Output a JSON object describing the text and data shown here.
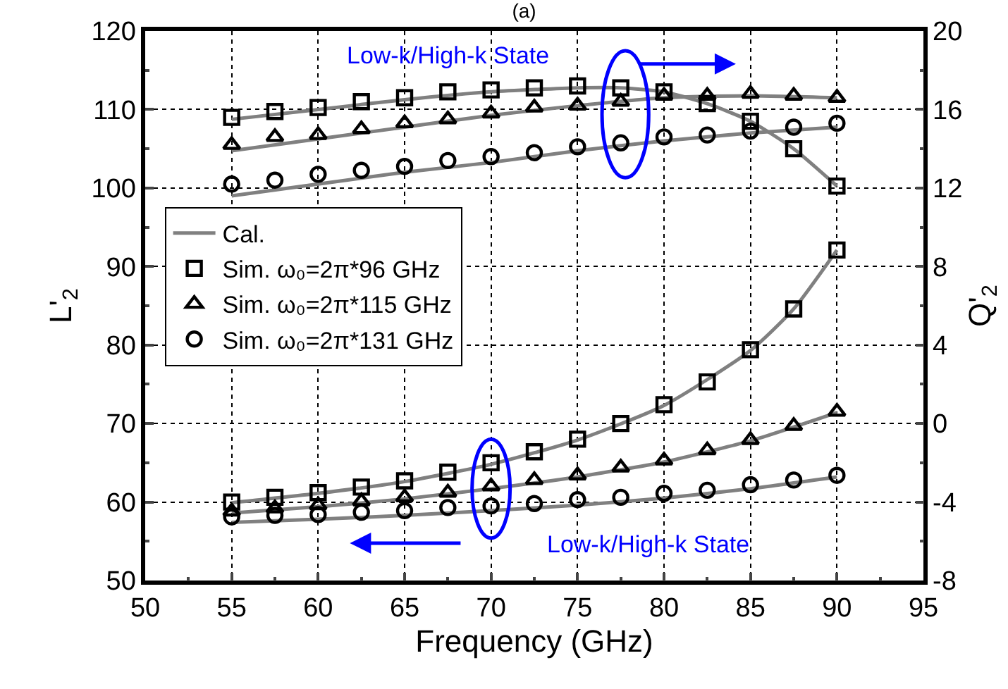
{
  "chart_data": {
    "type": "scatter",
    "title": "(a)",
    "xlabel": "Frequency (GHz)",
    "ylabel": "L'$_{2}$",
    "y2label": "Q'$_{2}$",
    "xlim": [
      50,
      95
    ],
    "xticks": [
      50,
      55,
      60,
      65,
      70,
      75,
      80,
      85,
      90,
      95
    ],
    "ylim": [
      50,
      120
    ],
    "yticks": [
      50,
      60,
      70,
      80,
      90,
      100,
      110,
      120
    ],
    "y2lim": [
      -8,
      20
    ],
    "y2ticks": [
      -8,
      -4,
      0,
      4,
      8,
      12,
      16,
      20
    ],
    "grid": true,
    "legend": "left",
    "annotations": [
      "Low-k/High-k State",
      {
        "text": "Low-k/High-k State",
        "x": 70,
        "y": 61.7
      }
    ],
    "series": [
      {
        "name": "Cal.",
        "type": "line",
        "color": "#808080",
        "marker": "none",
        "line_style": "solid",
        "x": [
          55,
          60,
          65,
          70,
          75,
          80,
          85,
          87.5,
          90
        ],
        "values": [
          59.9,
          61.1,
          62.6,
          64.8,
          67.9,
          72.3,
          79.3,
          84.6,
          92.1
        ]
      },
      {
        "type": "line",
        "color": "#808080",
        "marker": "none",
        "line_style": "solid",
        "x": [
          55,
          60,
          65,
          70,
          75,
          80,
          85,
          90
        ],
        "values": [
          58.6,
          59.4,
          60.4,
          61.7,
          63.2,
          65.1,
          67.8,
          71.4
        ]
      },
      {
        "type": "line",
        "color": "#808080",
        "marker": "none",
        "line_style": "solid",
        "x": [
          55,
          60,
          65,
          70,
          75,
          80,
          85,
          90
        ],
        "values": [
          57.4,
          57.8,
          58.3,
          58.9,
          59.6,
          60.5,
          61.7,
          63.2
        ]
      },
      {
        "type": "line",
        "axis": "y2",
        "color": "#808080",
        "marker": "none",
        "line_style": "solid",
        "x": [
          55,
          60,
          65,
          70,
          75,
          77.5,
          80,
          82.5,
          85,
          87.5,
          90
        ],
        "values": [
          15.5,
          16.0,
          16.5,
          16.9,
          17.1,
          17.1,
          16.9,
          16.3,
          15.4,
          14.0,
          12.1
        ]
      },
      {
        "type": "line",
        "axis": "y2",
        "color": "#808080",
        "marker": "none",
        "line_style": "solid",
        "x": [
          55,
          60,
          65,
          70,
          75,
          80,
          85,
          90
        ],
        "values": [
          13.9,
          14.5,
          15.1,
          15.7,
          16.2,
          16.6,
          16.7,
          16.6
        ]
      },
      {
        "type": "line",
        "axis": "y2",
        "color": "#808080",
        "marker": "none",
        "line_style": "solid",
        "x": [
          55,
          60,
          65,
          70,
          75,
          80,
          85,
          90
        ],
        "values": [
          11.6,
          12.2,
          12.8,
          13.3,
          13.9,
          14.4,
          14.8,
          15.1
        ]
      },
      {
        "name": "Sim. ω₀=2π*96 GHz",
        "color": "#000000",
        "marker": "square",
        "x": [
          55,
          57.5,
          60,
          62.5,
          65,
          67.5,
          70,
          72.5,
          75,
          77.5,
          80,
          82.5,
          85,
          87.5,
          90
        ],
        "values": [
          60.0,
          60.6,
          61.2,
          61.9,
          62.7,
          63.8,
          65.0,
          66.4,
          68.0,
          70.0,
          72.4,
          75.3,
          79.4,
          84.6,
          92.1
        ]
      },
      {
        "name": "Sim. ω₀=2π*115 GHz",
        "color": "#000000",
        "marker": "triangle",
        "x": [
          55,
          57.5,
          60,
          62.5,
          65,
          67.5,
          70,
          72.5,
          75,
          77.5,
          80,
          82.5,
          85,
          87.5,
          90
        ],
        "values": [
          58.8,
          59.2,
          59.6,
          60.1,
          60.6,
          61.2,
          62.0,
          62.8,
          63.4,
          64.4,
          65.3,
          66.6,
          67.9,
          69.7,
          71.5
        ]
      },
      {
        "name": "Sim. ω₀=2π*131 GHz",
        "color": "#000000",
        "marker": "circle",
        "x": [
          55,
          57.5,
          60,
          62.5,
          65,
          67.5,
          70,
          72.5,
          75,
          77.5,
          80,
          82.5,
          85,
          87.5,
          90
        ],
        "values": [
          58.1,
          58.3,
          58.4,
          58.7,
          58.9,
          59.3,
          59.5,
          59.8,
          60.3,
          60.6,
          61.1,
          61.5,
          62.2,
          62.8,
          63.4
        ]
      },
      {
        "axis": "y2",
        "color": "#000000",
        "marker": "square",
        "x": [
          55,
          57.5,
          60,
          62.5,
          65,
          67.5,
          70,
          72.5,
          75,
          77.5,
          80,
          82.5,
          85,
          87.5,
          90
        ],
        "values": [
          15.6,
          15.9,
          16.1,
          16.4,
          16.6,
          16.9,
          17.0,
          17.1,
          17.2,
          17.1,
          16.9,
          16.3,
          15.4,
          14.0,
          12.1
        ]
      },
      {
        "axis": "y2",
        "color": "#000000",
        "marker": "triangle",
        "x": [
          55,
          57.5,
          60,
          62.5,
          65,
          67.5,
          70,
          72.5,
          75,
          77.5,
          80,
          82.5,
          85,
          87.5,
          90
        ],
        "values": [
          14.2,
          14.6,
          14.7,
          15.0,
          15.3,
          15.5,
          15.8,
          16.1,
          16.2,
          16.4,
          16.7,
          16.7,
          16.8,
          16.7,
          16.6
        ]
      },
      {
        "axis": "y2",
        "color": "#000000",
        "marker": "circle",
        "x": [
          55,
          57.5,
          60,
          62.5,
          65,
          67.5,
          70,
          72.5,
          75,
          77.5,
          80,
          82.5,
          85,
          87.5,
          90
        ],
        "values": [
          12.2,
          12.4,
          12.7,
          12.9,
          13.1,
          13.4,
          13.6,
          13.8,
          14.1,
          14.3,
          14.6,
          14.7,
          14.9,
          15.1,
          15.3
        ]
      }
    ]
  }
}
